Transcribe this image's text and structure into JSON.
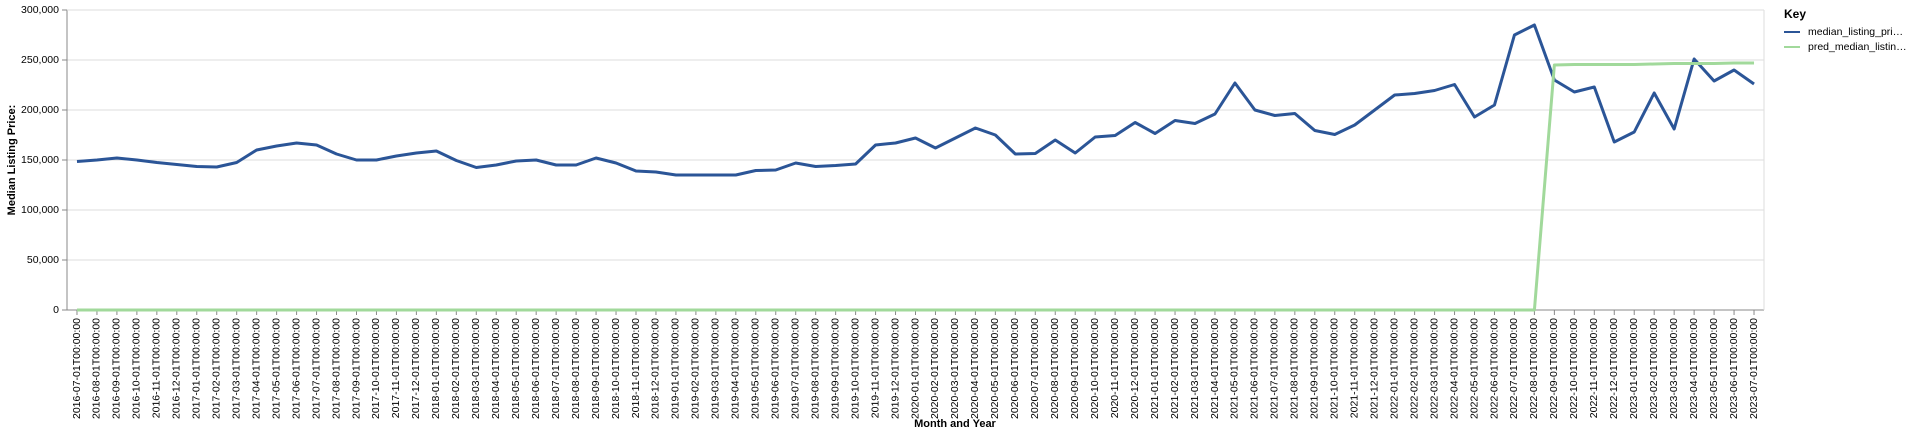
{
  "chart_data": {
    "type": "line",
    "x_label": "Month and Year",
    "y_label": "Median Listing Price:",
    "legend_title": "Key",
    "legend_position": "right",
    "grid": true,
    "categories": [
      "2016-07-01T00:00:00",
      "2016-08-01T00:00:00",
      "2016-09-01T00:00:00",
      "2016-10-01T00:00:00",
      "2016-11-01T00:00:00",
      "2016-12-01T00:00:00",
      "2017-01-01T00:00:00",
      "2017-02-01T00:00:00",
      "2017-03-01T00:00:00",
      "2017-04-01T00:00:00",
      "2017-05-01T00:00:00",
      "2017-06-01T00:00:00",
      "2017-07-01T00:00:00",
      "2017-08-01T00:00:00",
      "2017-09-01T00:00:00",
      "2017-10-01T00:00:00",
      "2017-11-01T00:00:00",
      "2017-12-01T00:00:00",
      "2018-01-01T00:00:00",
      "2018-02-01T00:00:00",
      "2018-03-01T00:00:00",
      "2018-04-01T00:00:00",
      "2018-05-01T00:00:00",
      "2018-06-01T00:00:00",
      "2018-07-01T00:00:00",
      "2018-08-01T00:00:00",
      "2018-09-01T00:00:00",
      "2018-10-01T00:00:00",
      "2018-11-01T00:00:00",
      "2018-12-01T00:00:00",
      "2019-01-01T00:00:00",
      "2019-02-01T00:00:00",
      "2019-03-01T00:00:00",
      "2019-04-01T00:00:00",
      "2019-05-01T00:00:00",
      "2019-06-01T00:00:00",
      "2019-07-01T00:00:00",
      "2019-08-01T00:00:00",
      "2019-09-01T00:00:00",
      "2019-10-01T00:00:00",
      "2019-11-01T00:00:00",
      "2019-12-01T00:00:00",
      "2020-01-01T00:00:00",
      "2020-02-01T00:00:00",
      "2020-03-01T00:00:00",
      "2020-04-01T00:00:00",
      "2020-05-01T00:00:00",
      "2020-06-01T00:00:00",
      "2020-07-01T00:00:00",
      "2020-08-01T00:00:00",
      "2020-09-01T00:00:00",
      "2020-10-01T00:00:00",
      "2020-11-01T00:00:00",
      "2020-12-01T00:00:00",
      "2021-01-01T00:00:00",
      "2021-02-01T00:00:00",
      "2021-03-01T00:00:00",
      "2021-04-01T00:00:00",
      "2021-05-01T00:00:00",
      "2021-06-01T00:00:00",
      "2021-07-01T00:00:00",
      "2021-08-01T00:00:00",
      "2021-09-01T00:00:00",
      "2021-10-01T00:00:00",
      "2021-11-01T00:00:00",
      "2021-12-01T00:00:00",
      "2022-01-01T00:00:00",
      "2022-02-01T00:00:00",
      "2022-03-01T00:00:00",
      "2022-04-01T00:00:00",
      "2022-05-01T00:00:00",
      "2022-06-01T00:00:00",
      "2022-07-01T00:00:00",
      "2022-08-01T00:00:00",
      "2022-09-01T00:00:00",
      "2022-10-01T00:00:00",
      "2022-11-01T00:00:00",
      "2022-12-01T00:00:00",
      "2023-01-01T00:00:00",
      "2023-02-01T00:00:00",
      "2023-03-01T00:00:00",
      "2023-04-01T00:00:00",
      "2023-05-01T00:00:00",
      "2023-06-01T00:00:00",
      "2023-07-01T00:00:00"
    ],
    "series": [
      {
        "name": "median_listing_pri…",
        "color": "#2b5597",
        "values": [
          148500,
          150000,
          152000,
          150000,
          147500,
          145500,
          143500,
          143000,
          147500,
          160000,
          164000,
          167000,
          165000,
          156000,
          150000,
          150000,
          154000,
          157000,
          159000,
          149500,
          142500,
          145000,
          149000,
          150000,
          145000,
          145000,
          152000,
          147000,
          139000,
          138000,
          135000,
          135000,
          135000,
          135000,
          139500,
          140000,
          147000,
          143500,
          144500,
          146000,
          165000,
          167000,
          172000,
          162000,
          172000,
          182000,
          175000,
          156000,
          156500,
          170000,
          157000,
          173000,
          174500,
          187500,
          176500,
          189500,
          186500,
          196000,
          227000,
          200000,
          194500,
          196500,
          179500,
          175500,
          185000,
          200000,
          215000,
          216500,
          219500,
          225500,
          193000,
          205000,
          275000,
          285000,
          230000,
          218000,
          223000,
          168000,
          178000,
          217000,
          181000,
          251000,
          229000,
          240000,
          226000
        ]
      },
      {
        "name": "pred_median_listin…",
        "color": "#a1d99b",
        "values": [
          0,
          0,
          0,
          0,
          0,
          0,
          0,
          0,
          0,
          0,
          0,
          0,
          0,
          0,
          0,
          0,
          0,
          0,
          0,
          0,
          0,
          0,
          0,
          0,
          0,
          0,
          0,
          0,
          0,
          0,
          0,
          0,
          0,
          0,
          0,
          0,
          0,
          0,
          0,
          0,
          0,
          0,
          0,
          0,
          0,
          0,
          0,
          0,
          0,
          0,
          0,
          0,
          0,
          0,
          0,
          0,
          0,
          0,
          0,
          0,
          0,
          0,
          0,
          0,
          0,
          0,
          0,
          0,
          0,
          0,
          0,
          0,
          0,
          0,
          245000,
          245500,
          245500,
          245500,
          245500,
          246000,
          246500,
          246500,
          246500,
          247000,
          247000
        ]
      }
    ],
    "ylim": [
      0,
      300000
    ],
    "yticks": [
      0,
      {
        "value": 50000,
        "label": "50,000"
      },
      {
        "value": 100000,
        "label": "100,000"
      },
      {
        "value": 150000,
        "label": "150,000"
      },
      {
        "value": 200000,
        "label": "200,000"
      },
      {
        "value": 250000,
        "label": "250,000"
      },
      {
        "value": 300000,
        "label": "300,000"
      }
    ]
  }
}
